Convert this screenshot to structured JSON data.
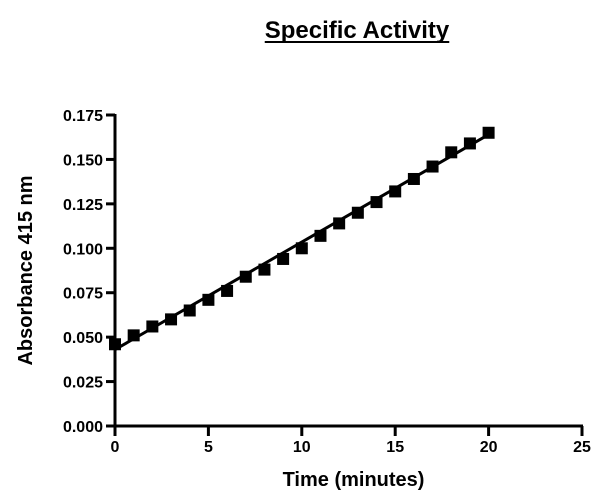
{
  "chart_data": {
    "type": "scatter",
    "title": "Specific Activity",
    "xlabel": "Time (minutes)",
    "ylabel": "Absorbance 415 nm",
    "xlim": [
      0,
      25
    ],
    "ylim": [
      0,
      0.175
    ],
    "xticks": [
      0,
      5,
      10,
      15,
      20,
      25
    ],
    "yticks": [
      0.0,
      0.025,
      0.05,
      0.075,
      0.1,
      0.125,
      0.15,
      0.175
    ],
    "xtick_labels": [
      "0",
      "5",
      "10",
      "15",
      "20",
      "25"
    ],
    "ytick_labels": [
      "0.000",
      "0.025",
      "0.050",
      "0.075",
      "0.100",
      "0.125",
      "0.150",
      "0.175"
    ],
    "grid": false,
    "marker": "square",
    "color": "#000000",
    "series": [
      {
        "x": [
          0,
          1,
          2,
          3,
          4,
          5,
          6,
          7,
          8,
          9,
          10,
          11,
          12,
          13,
          14,
          15,
          16,
          17,
          18,
          19,
          20
        ],
        "y": [
          0.046,
          0.051,
          0.056,
          0.06,
          0.065,
          0.071,
          0.076,
          0.084,
          0.088,
          0.094,
          0.1,
          0.107,
          0.114,
          0.12,
          0.126,
          0.132,
          0.139,
          0.146,
          0.154,
          0.159,
          0.165
        ]
      }
    ],
    "fit_line": {
      "x": [
        0,
        20
      ],
      "y": [
        0.043,
        0.164
      ]
    }
  }
}
